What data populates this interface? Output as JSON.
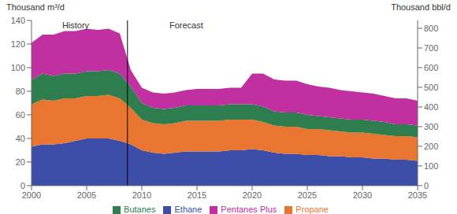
{
  "chart_data": {
    "type": "area",
    "stacked": true,
    "grid": false,
    "legend": "bottom",
    "ylabel": "Thousand m³/d",
    "y2label": "Thousand bbl/d",
    "x": [
      2000,
      2001,
      2002,
      2003,
      2004,
      2005,
      2006,
      2007,
      2008,
      2009,
      2010,
      2011,
      2012,
      2013,
      2014,
      2015,
      2016,
      2017,
      2018,
      2019,
      2020,
      2021,
      2022,
      2023,
      2024,
      2025,
      2026,
      2027,
      2028,
      2029,
      2030,
      2031,
      2032,
      2033,
      2034,
      2035
    ],
    "xlim": [
      2000,
      2035
    ],
    "xticks": [
      2000,
      2005,
      2010,
      2015,
      2020,
      2025,
      2030,
      2035
    ],
    "ylim": [
      0,
      140
    ],
    "yticks": [
      0,
      20,
      40,
      60,
      80,
      100,
      120,
      140
    ],
    "y2lim": [
      0,
      840
    ],
    "y2ticks": [
      0,
      100,
      200,
      300,
      400,
      500,
      600,
      700,
      800
    ],
    "series": [
      {
        "name": "Ethane",
        "color": "#3d4ea8",
        "values": [
          33,
          35,
          35,
          36,
          38,
          40,
          40,
          40,
          38,
          35,
          30,
          28,
          27,
          28,
          29,
          29,
          29,
          29,
          30,
          30,
          31,
          30,
          28,
          27,
          27,
          26,
          26,
          25,
          25,
          24,
          24,
          23,
          23,
          22,
          22,
          21
        ]
      },
      {
        "name": "Propane",
        "color": "#e87530",
        "values": [
          36,
          38,
          37,
          38,
          36,
          36,
          36,
          37,
          36,
          31,
          26,
          25,
          25,
          25,
          26,
          26,
          26,
          26,
          26,
          26,
          25,
          24,
          23,
          23,
          23,
          22,
          22,
          22,
          21,
          21,
          21,
          21,
          20,
          20,
          20,
          20
        ]
      },
      {
        "name": "Butanes",
        "color": "#2e7d4f",
        "values": [
          21,
          22,
          21,
          21,
          21,
          21,
          21,
          21,
          21,
          18,
          14,
          13,
          13,
          13,
          13,
          13,
          13,
          13,
          13,
          13,
          13,
          13,
          12,
          12,
          12,
          12,
          11,
          11,
          11,
          11,
          11,
          11,
          11,
          10,
          10,
          10
        ]
      },
      {
        "name": "Pentanes Plus",
        "color": "#c030a0",
        "values": [
          31,
          33,
          35,
          36,
          36,
          36,
          35,
          35,
          34,
          14,
          13,
          13,
          13,
          13,
          13,
          14,
          14,
          14,
          14,
          14,
          26,
          28,
          27,
          27,
          27,
          26,
          25,
          25,
          24,
          24,
          23,
          23,
          22,
          22,
          22,
          21
        ]
      }
    ],
    "reference_lines": [
      {
        "x": 2008.7,
        "color": "black"
      }
    ],
    "annotations": [
      {
        "text": "History",
        "x": 2004.0,
        "y": 136,
        "align": "center"
      },
      {
        "text": "Forecast",
        "x": 2012.5,
        "y": 136,
        "align": "left"
      }
    ]
  }
}
